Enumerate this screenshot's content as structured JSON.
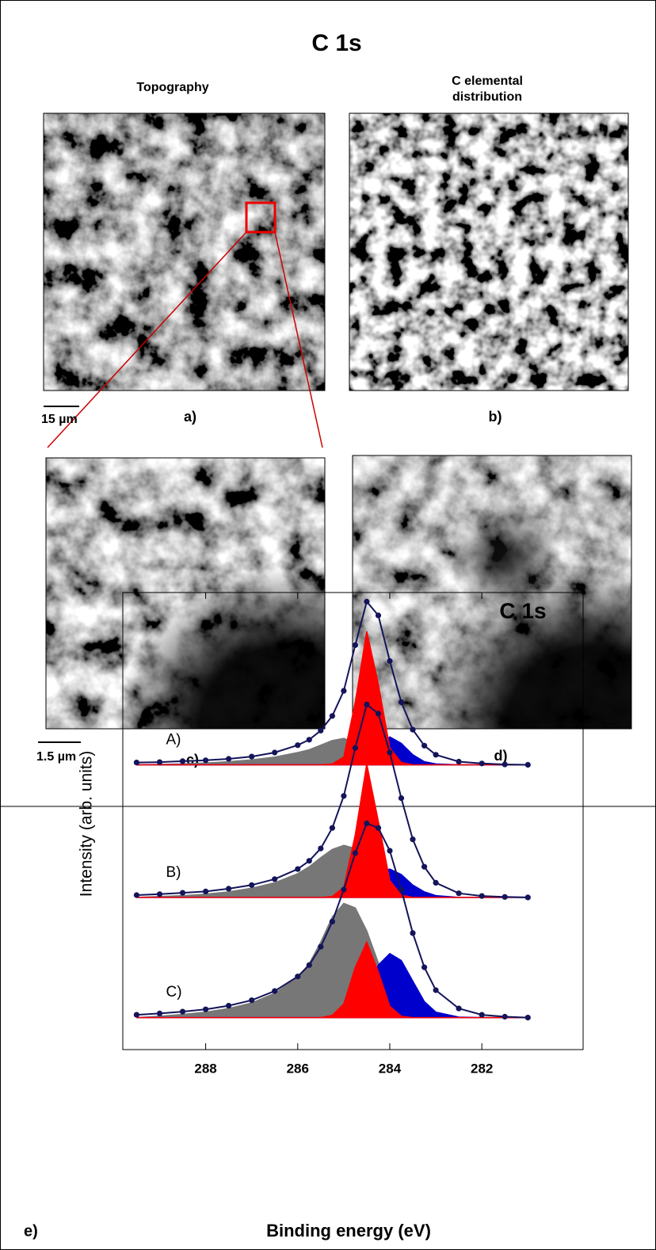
{
  "header": {
    "title": "C 1s"
  },
  "columns": [
    {
      "lines": [
        "Topography"
      ]
    },
    {
      "lines": [
        "C elemental",
        "distribution"
      ]
    }
  ],
  "panels": [
    {
      "label": "a)"
    },
    {
      "label": "b)"
    },
    {
      "label": "c)"
    },
    {
      "label": "d)"
    }
  ],
  "scale_bars": [
    "15 µm",
    "1.5 µm"
  ],
  "chart_data": {
    "type": "line",
    "title": "C 1s",
    "panel_label": "e)",
    "xlabel": "Binding energy (eV)",
    "ylabel": "Intensity (arb. units)",
    "xlim": [
      289.8,
      279.8
    ],
    "xticks": [
      288,
      286,
      284,
      282
    ],
    "ylim": [
      0,
      100
    ],
    "x": [
      289.5,
      289,
      288.5,
      288,
      287.5,
      287,
      286.5,
      286,
      285.75,
      285.5,
      285.25,
      285,
      284.75,
      284.5,
      284.25,
      284,
      283.75,
      283.5,
      283.25,
      283,
      282.5,
      282,
      281.5,
      281
    ],
    "series": [
      {
        "name": "A)",
        "color": "#14145a",
        "values": [
          62.8,
          62.9,
          63.1,
          63.3,
          63.6,
          64.1,
          65.0,
          66.6,
          67.8,
          69.8,
          73.0,
          78.5,
          88.5,
          98.0,
          95.0,
          85.0,
          76.0,
          70.0,
          66.5,
          64.5,
          63.0,
          62.6,
          62.4,
          62.3
        ],
        "fits": [
          {
            "color": "#777777",
            "values": [
              62.3,
              62.4,
              62.5,
              62.7,
              63.0,
              63.4,
              64.0,
              65.0,
              65.6,
              66.6,
              67.6,
              68.1,
              67.2,
              65.5,
              63.8,
              62.8,
              62.4,
              62.3,
              62.3,
              62.3,
              62.3,
              62.3,
              62.3,
              62.3
            ]
          },
          {
            "color": "#0000cc",
            "values": [
              62.3,
              62.3,
              62.3,
              62.3,
              62.3,
              62.3,
              62.3,
              62.3,
              62.3,
              62.3,
              62.3,
              62.3,
              62.3,
              63.5,
              66.5,
              68.4,
              67.0,
              64.5,
              63.0,
              62.5,
              62.3,
              62.3,
              62.3,
              62.3
            ]
          },
          {
            "color": "#ff0000",
            "values": [
              62.3,
              62.3,
              62.3,
              62.3,
              62.3,
              62.3,
              62.3,
              62.3,
              62.3,
              62.3,
              62.5,
              64.0,
              76.0,
              91.5,
              80.0,
              66.0,
              62.8,
              62.3,
              62.3,
              62.3,
              62.3,
              62.3,
              62.3,
              62.3
            ]
          }
        ]
      },
      {
        "name": "B)",
        "color": "#14145a",
        "values": [
          33.8,
          34.0,
          34.3,
          34.6,
          35.2,
          36.0,
          37.3,
          39.5,
          41.3,
          44.0,
          48.5,
          55.5,
          66.0,
          75.5,
          73.5,
          65.0,
          55.0,
          46.0,
          40.0,
          36.5,
          34.2,
          33.6,
          33.4,
          33.3
        ],
        "fits": [
          {
            "color": "#777777",
            "values": [
              33.3,
              33.5,
              33.7,
              34.0,
              34.5,
              35.3,
              36.5,
              38.5,
              40.0,
              42.0,
              43.8,
              44.7,
              44.0,
              41.5,
              38.0,
              35.5,
              34.2,
              33.6,
              33.3,
              33.3,
              33.3,
              33.3,
              33.3,
              33.3
            ]
          },
          {
            "color": "#0000cc",
            "values": [
              33.3,
              33.3,
              33.3,
              33.3,
              33.3,
              33.3,
              33.3,
              33.3,
              33.3,
              33.3,
              33.3,
              33.3,
              33.8,
              35.5,
              38.5,
              39.5,
              38.3,
              36.0,
              34.5,
              33.7,
              33.3,
              33.3,
              33.3,
              33.3
            ]
          },
          {
            "color": "#ff0000",
            "values": [
              33.3,
              33.3,
              33.3,
              33.3,
              33.3,
              33.3,
              33.3,
              33.3,
              33.3,
              33.3,
              33.5,
              35.5,
              47.0,
              62.5,
              50.0,
              37.0,
              33.8,
              33.3,
              33.3,
              33.3,
              33.3,
              33.3,
              33.3,
              33.3
            ]
          }
        ]
      },
      {
        "name": "C)",
        "color": "#14145a",
        "values": [
          7.6,
          7.9,
          8.3,
          8.8,
          9.6,
          10.8,
          12.8,
          16.0,
          18.5,
          22.5,
          28.0,
          35.0,
          43.0,
          49.5,
          48.5,
          43.5,
          35.0,
          25.5,
          18.0,
          13.0,
          9.0,
          7.6,
          7.2,
          7.0
        ],
        "fits": [
          {
            "color": "#777777",
            "values": [
              7.0,
              7.3,
              7.7,
              8.2,
              9.0,
              10.2,
              12.3,
              15.8,
              18.8,
              23.5,
              29.0,
              32.0,
              31.0,
              26.0,
              19.0,
              13.0,
              9.5,
              7.8,
              7.2,
              7.0,
              7.0,
              7.0,
              7.0,
              7.0
            ]
          },
          {
            "color": "#0000cc",
            "values": [
              7.0,
              7.0,
              7.0,
              7.0,
              7.0,
              7.0,
              7.0,
              7.0,
              7.0,
              7.0,
              7.0,
              7.0,
              7.5,
              11.0,
              18.5,
              21.0,
              19.5,
              15.0,
              10.5,
              8.2,
              7.1,
              7.0,
              7.0,
              7.0
            ]
          },
          {
            "color": "#ff0000",
            "values": [
              7.0,
              7.0,
              7.0,
              7.0,
              7.0,
              7.0,
              7.0,
              7.0,
              7.0,
              7.0,
              7.5,
              10.0,
              18.0,
              23.5,
              17.0,
              9.5,
              7.3,
              7.0,
              7.0,
              7.0,
              7.0,
              7.0,
              7.0,
              7.0
            ]
          }
        ]
      }
    ]
  }
}
